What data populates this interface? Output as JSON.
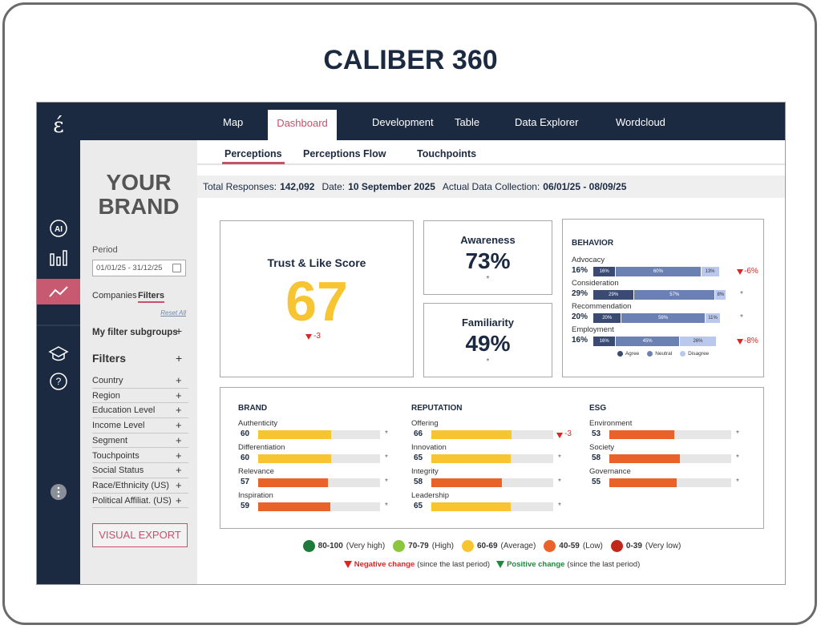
{
  "title": "CALIBER 360",
  "sidebar": {
    "logo": "έ",
    "ai": "AI",
    "help": "?"
  },
  "nav": {
    "tabs": [
      "Map",
      "Dashboard",
      "Development",
      "Table",
      "Data Explorer",
      "Wordcloud"
    ],
    "active": 1
  },
  "brand_panel": {
    "brand": "YOUR BRAND",
    "period_label": "Period",
    "period_value": "01/01/25 - 31/12/25",
    "tabs": [
      "Companies",
      "Filters"
    ],
    "active_tab": 1,
    "reset": "Reset All",
    "subgroups": "My filter subgroups",
    "filters_title": "Filters",
    "filters": [
      "Country",
      "Region",
      "Education Level",
      "Income Level",
      "Segment",
      "Touchpoints",
      "Social Status",
      "Race/Ethnicity (US)",
      "Political Affiliat. (US)"
    ],
    "export": "VISUAL EXPORT"
  },
  "subtabs": {
    "tabs": [
      "Perceptions",
      "Perceptions Flow",
      "Touchpoints"
    ],
    "active": 0
  },
  "info": [
    {
      "label": "Total Responses:",
      "value": "142,092"
    },
    {
      "label": "Date:",
      "value": "10 September 2025"
    },
    {
      "label": "Actual Data Collection:",
      "value": "06/01/25 - 08/09/25"
    }
  ],
  "trust": {
    "title": "Trust & Like Score",
    "score": 67,
    "change": "-3"
  },
  "awareness": {
    "title": "Awareness",
    "value": "73%",
    "note": "*"
  },
  "familiarity": {
    "title": "Familiarity",
    "value": "49%",
    "note": "*"
  },
  "behavior": {
    "title": "BEHAVIOR",
    "rows": [
      {
        "label": "Advocacy",
        "score": "16%",
        "values": [
          16,
          60,
          13
        ],
        "value_labels": [
          "16%",
          "60%",
          "13%"
        ],
        "change": "-6%"
      },
      {
        "label": "Consideration",
        "score": "29%",
        "values": [
          29,
          57,
          8
        ],
        "value_labels": [
          "29%",
          "57%",
          "8%"
        ],
        "change": "*"
      },
      {
        "label": "Recommendation",
        "score": "20%",
        "values": [
          20,
          59,
          11
        ],
        "value_labels": [
          "20%",
          "59%",
          "11%"
        ],
        "change": "*"
      },
      {
        "label": "Employment",
        "score": "16%",
        "values": [
          16,
          45,
          26
        ],
        "value_labels": [
          "16%",
          "45%",
          "26%"
        ],
        "change": "-8%"
      }
    ],
    "legend": [
      {
        "name": "Agree",
        "color": "#3b4a73"
      },
      {
        "name": "Neutral",
        "color": "#6b80b3"
      },
      {
        "name": "Disagree",
        "color": "#b9c8ec"
      }
    ]
  },
  "scores": {
    "columns": [
      {
        "title": "BRAND",
        "items": [
          {
            "label": "Authenticity",
            "value": 60,
            "color": "#f7c531",
            "change": "*"
          },
          {
            "label": "Differentiation",
            "value": 60,
            "color": "#f7c531",
            "change": "*"
          },
          {
            "label": "Relevance",
            "value": 57,
            "color": "#e8622a",
            "change": "*"
          },
          {
            "label": "Inspiration",
            "value": 59,
            "color": "#e8622a",
            "change": "*"
          }
        ]
      },
      {
        "title": "REPUTATION",
        "items": [
          {
            "label": "Offering",
            "value": 66,
            "color": "#f7c531",
            "change": "-3"
          },
          {
            "label": "Innovation",
            "value": 65,
            "color": "#f7c531",
            "change": "*"
          },
          {
            "label": "Integrity",
            "value": 58,
            "color": "#e8622a",
            "change": "*"
          },
          {
            "label": "Leadership",
            "value": 65,
            "color": "#f7c531",
            "change": "*"
          }
        ]
      },
      {
        "title": "ESG",
        "items": [
          {
            "label": "Environment",
            "value": 53,
            "color": "#e8622a",
            "change": "*"
          },
          {
            "label": "Society",
            "value": 58,
            "color": "#e8622a",
            "change": "*"
          },
          {
            "label": "Governance",
            "value": 55,
            "color": "#e8622a",
            "change": "*"
          }
        ]
      }
    ]
  },
  "legend": {
    "levels": [
      {
        "range": "80-100",
        "desc": "(Very high)",
        "color": "#1d7a3a"
      },
      {
        "range": "70-79",
        "desc": "(High)",
        "color": "#8cc63f"
      },
      {
        "range": "60-69",
        "desc": "(Average)",
        "color": "#f7c531"
      },
      {
        "range": "40-59",
        "desc": "(Low)",
        "color": "#e8622a"
      },
      {
        "range": "0-39",
        "desc": "(Very low)",
        "color": "#c0281c"
      }
    ],
    "changes": [
      {
        "label": "Negative change",
        "desc": "(since the last period)",
        "color": "#e02424"
      },
      {
        "label": "Positive change",
        "desc": "(since the last period)",
        "color": "#1d8a3a"
      }
    ]
  }
}
